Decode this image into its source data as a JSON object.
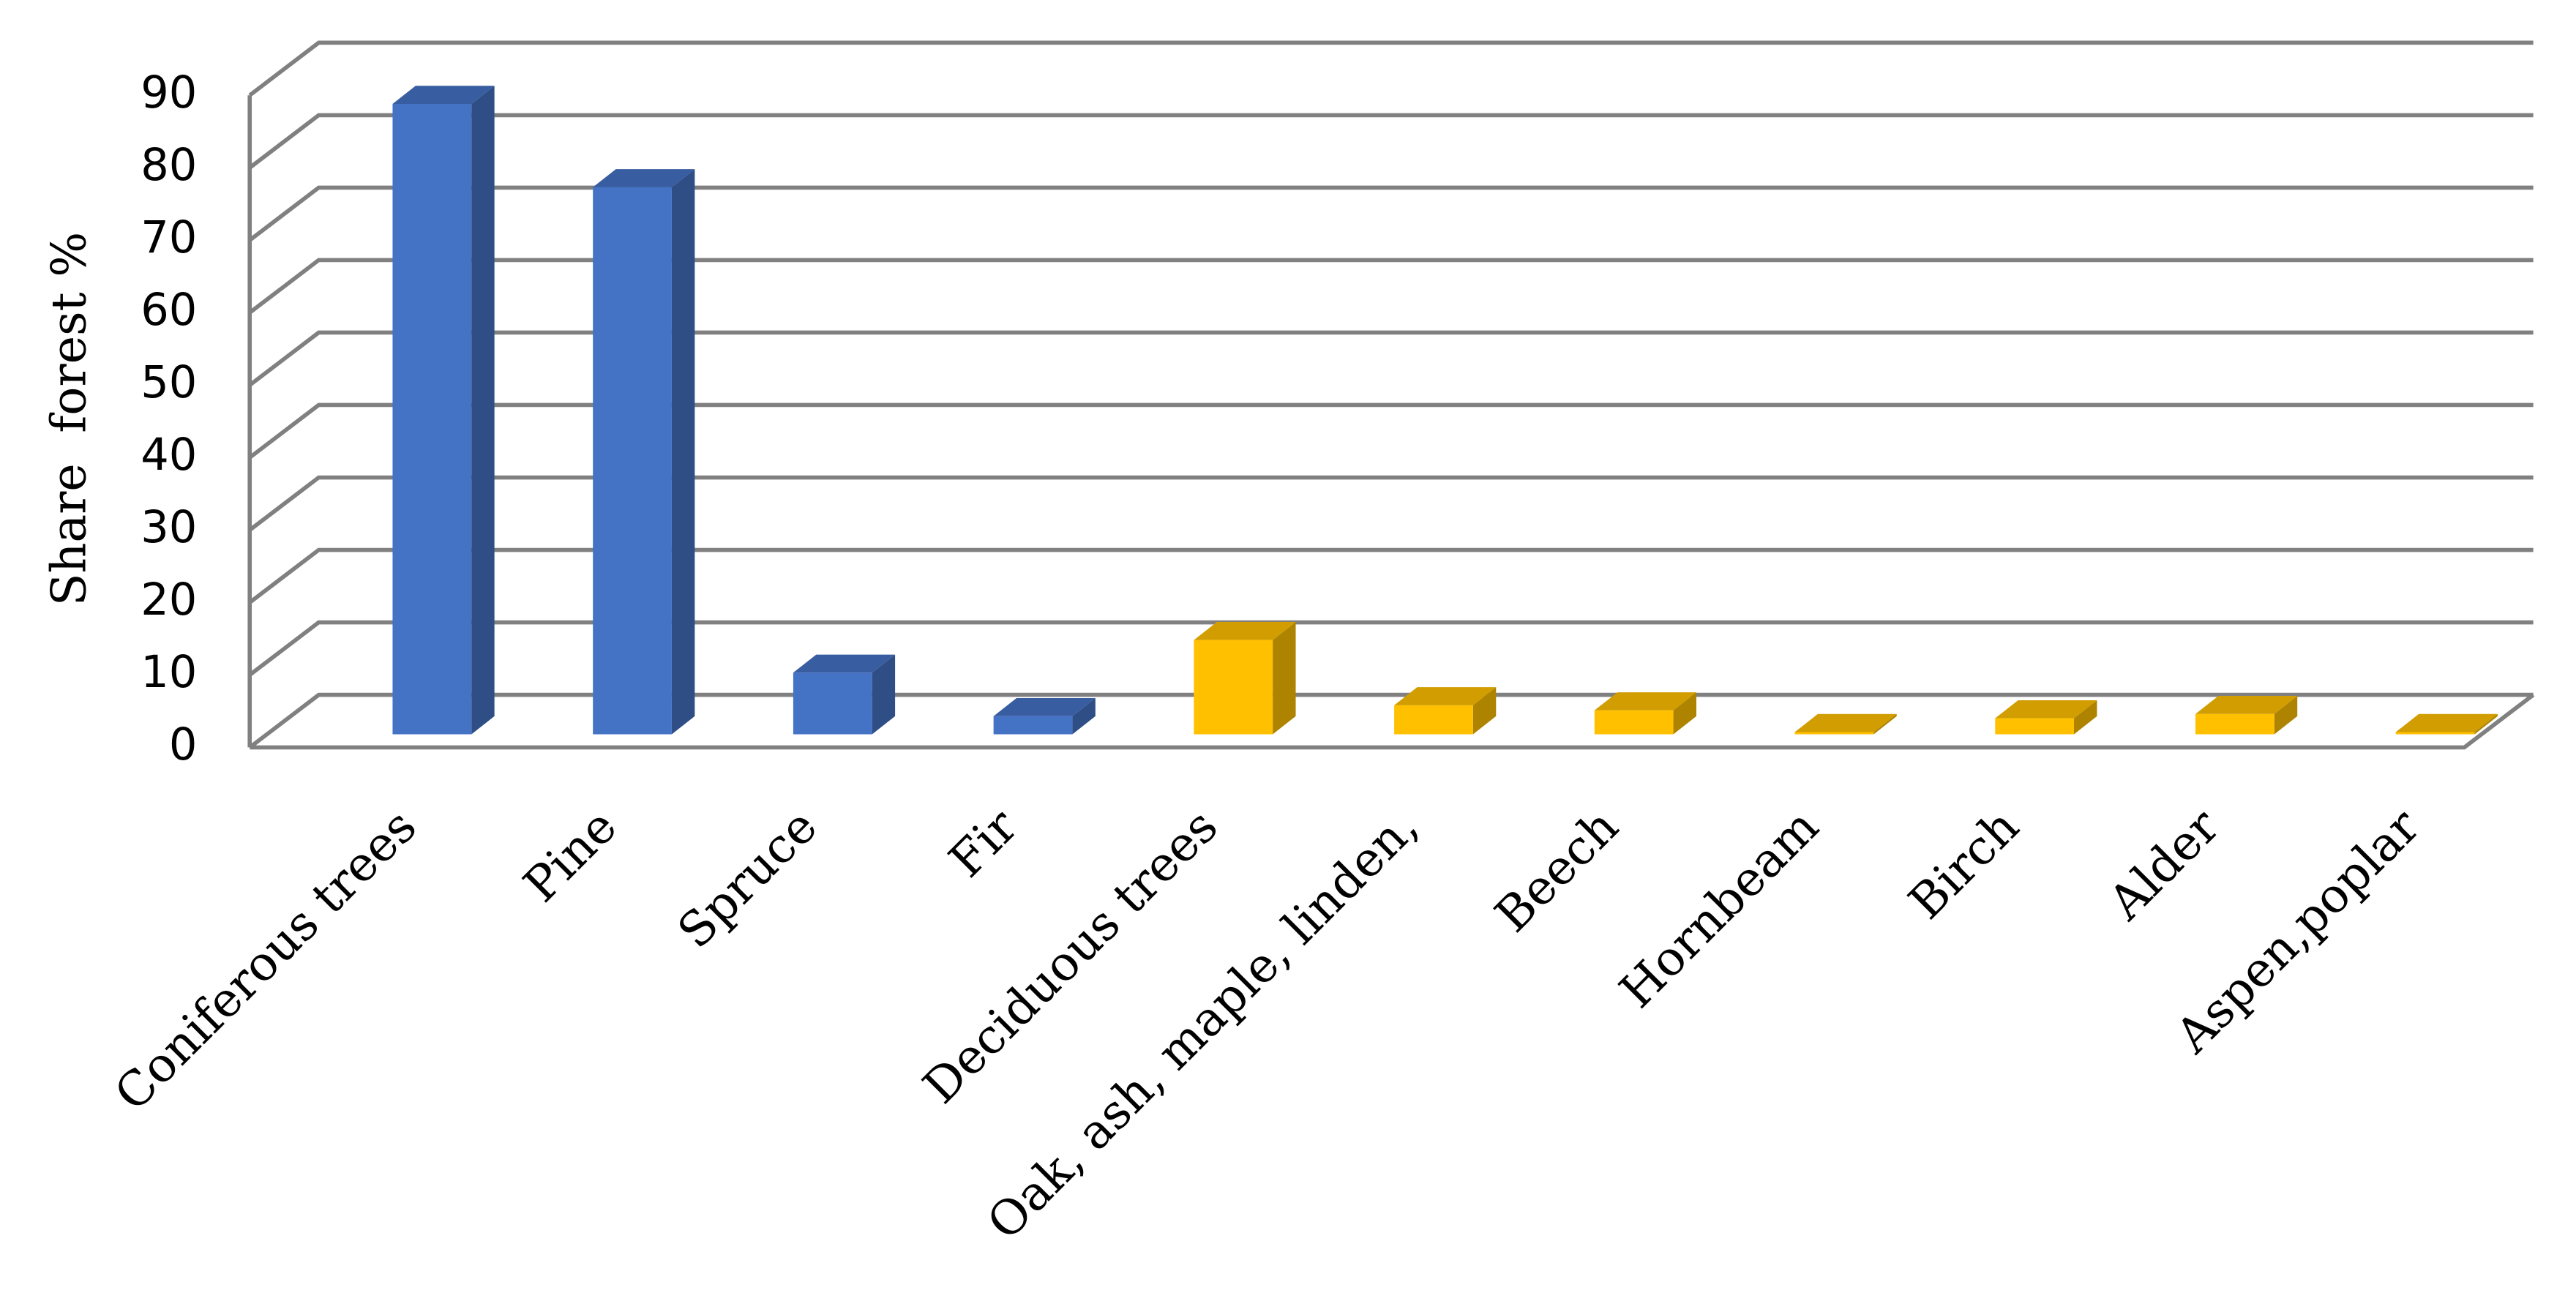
{
  "chart_data": {
    "type": "bar3d",
    "y_label": "Share  forest %",
    "categories": [
      "Coniferous trees",
      "Pine",
      "Spruce",
      "Fir",
      "Deciduous trees",
      "Oak, ash, maple, linden,",
      "Beech",
      "Hornbeam",
      "Birch",
      "Alder",
      "Aspen,poplar"
    ],
    "values": [
      87,
      75.5,
      8.5,
      2.5,
      13,
      4,
      3.3,
      0.3,
      2.2,
      2.8,
      0.3
    ],
    "colors": [
      "#4472c4",
      "#4472c4",
      "#4472c4",
      "#4472c4",
      "#ffc000",
      "#ffc000",
      "#ffc000",
      "#ffc000",
      "#ffc000",
      "#ffc000",
      "#ffc000"
    ],
    "ylim": [
      0,
      90
    ],
    "yticks": [
      0,
      10,
      20,
      30,
      40,
      50,
      60,
      70,
      80,
      90
    ],
    "grid": true
  }
}
